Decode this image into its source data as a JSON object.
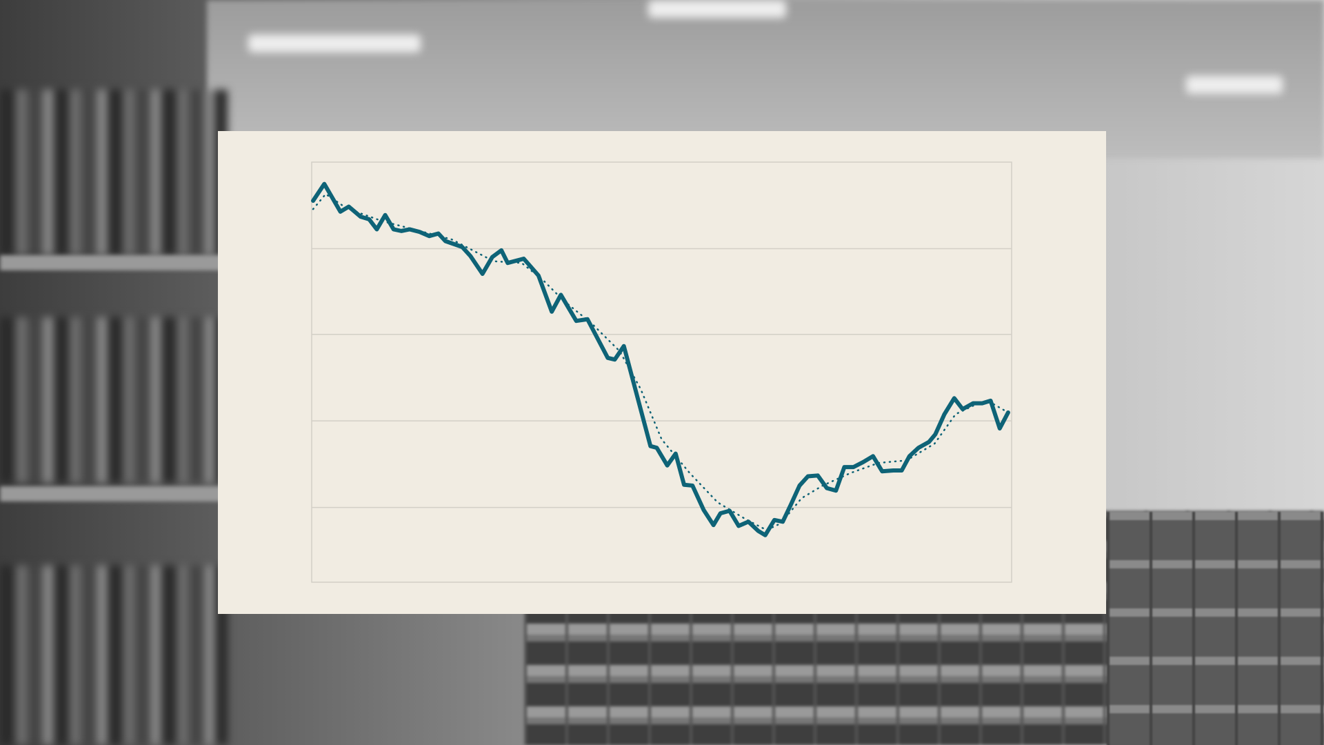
{
  "chart_data": {
    "type": "line",
    "title": "",
    "xlabel": "",
    "ylabel": "",
    "xlim": [
      0,
      100
    ],
    "ylim": [
      0,
      5
    ],
    "grid": true,
    "gridlines_y": [
      0.89,
      1.92,
      2.95,
      3.97
    ],
    "legend": "none",
    "colors": {
      "line": "#0e6377",
      "grid": "#d3cfc6",
      "background": "#f1ece2"
    },
    "series": [
      {
        "style": "solid",
        "x": [
          0.2,
          1.8,
          4.1,
          5.3,
          7.0,
          8.2,
          9.3,
          10.5,
          11.7,
          12.8,
          14.0,
          15.4,
          16.8,
          18.1,
          19.1,
          21.5,
          22.7,
          24.4,
          25.8,
          27.1,
          28.0,
          30.3,
          32.4,
          34.3,
          35.6,
          37.8,
          39.4,
          41.1,
          42.3,
          43.3,
          44.6,
          48.4,
          49.3,
          50.8,
          52.0,
          53.2,
          54.4,
          56.0,
          57.4,
          58.4,
          59.7,
          61.0,
          62.4,
          63.8,
          64.8,
          66.1,
          67.3,
          68.5,
          69.7,
          70.9,
          72.3,
          73.6,
          74.9,
          76.1,
          77.4,
          78.8,
          80.2,
          81.5,
          83.1,
          84.3,
          85.4,
          86.7,
          88.2,
          89.1,
          90.4,
          91.8,
          93.0,
          94.5,
          95.8,
          97.0,
          98.3,
          99.5
        ],
        "y": [
          4.54,
          4.74,
          4.41,
          4.47,
          4.35,
          4.32,
          4.2,
          4.37,
          4.2,
          4.18,
          4.2,
          4.17,
          4.12,
          4.15,
          4.06,
          3.99,
          3.88,
          3.67,
          3.87,
          3.95,
          3.8,
          3.85,
          3.65,
          3.22,
          3.42,
          3.11,
          3.13,
          2.86,
          2.67,
          2.65,
          2.81,
          1.62,
          1.6,
          1.39,
          1.53,
          1.16,
          1.15,
          0.86,
          0.68,
          0.82,
          0.85,
          0.67,
          0.72,
          0.61,
          0.56,
          0.74,
          0.72,
          0.93,
          1.15,
          1.26,
          1.27,
          1.12,
          1.09,
          1.37,
          1.37,
          1.43,
          1.5,
          1.32,
          1.33,
          1.33,
          1.5,
          1.6,
          1.67,
          1.76,
          2.0,
          2.19,
          2.06,
          2.13,
          2.13,
          2.16,
          1.83,
          2.02
        ]
      },
      {
        "style": "dotted",
        "x": [
          0.2,
          2,
          5,
          10,
          15,
          20,
          23,
          26,
          30,
          33,
          36,
          40,
          44,
          47,
          50,
          54,
          58,
          62,
          65,
          67,
          70,
          73,
          77,
          81,
          85,
          89,
          92,
          95,
          97,
          99.5
        ],
        "y": [
          4.44,
          4.62,
          4.45,
          4.3,
          4.19,
          4.08,
          3.95,
          3.82,
          3.8,
          3.6,
          3.35,
          3.08,
          2.75,
          2.3,
          1.7,
          1.3,
          0.95,
          0.75,
          0.62,
          0.7,
          1.0,
          1.15,
          1.3,
          1.42,
          1.45,
          1.65,
          2.0,
          2.12,
          2.14,
          2.02
        ]
      }
    ]
  }
}
